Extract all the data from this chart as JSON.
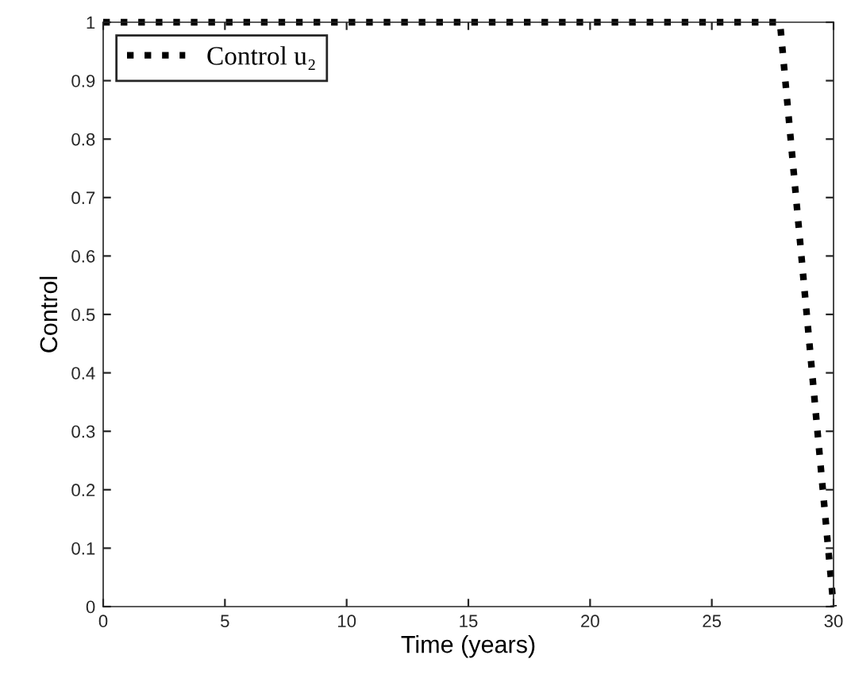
{
  "chart_data": {
    "type": "line",
    "xlabel": "Time (years)",
    "ylabel": "Control",
    "x": [
      0,
      27.8,
      30
    ],
    "series": [
      {
        "name": "Control u₂",
        "color": "#000000",
        "values": [
          1,
          1,
          0
        ]
      }
    ],
    "xlim": [
      0,
      30
    ],
    "ylim": [
      0,
      1
    ],
    "xticks": [
      0,
      5,
      10,
      15,
      20,
      25,
      30
    ],
    "yticks": [
      0,
      0.1,
      0.2,
      0.3,
      0.4,
      0.5,
      0.6,
      0.7,
      0.8,
      0.9,
      1
    ],
    "legend": "top left",
    "line_style": "dotted",
    "marker": "none",
    "grid": false
  }
}
